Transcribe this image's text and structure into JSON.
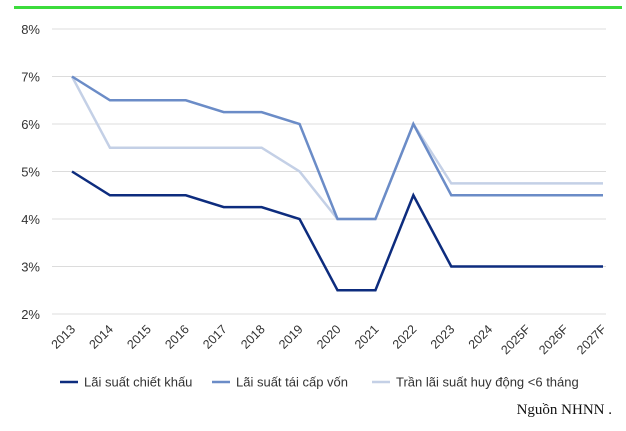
{
  "top_bar_color": "#3cdc3c",
  "source_note": "Nguồn NHNN .",
  "chart_data": {
    "type": "line",
    "categories": [
      "2013",
      "2014",
      "2015",
      "2016",
      "2017",
      "2018",
      "2019",
      "2020",
      "2021",
      "2022",
      "2023",
      "2024",
      "2025F",
      "2026F",
      "2027F"
    ],
    "y_ticks": [
      "2%",
      "3%",
      "4%",
      "5%",
      "6%",
      "7%",
      "8%"
    ],
    "ylim": [
      2,
      8
    ],
    "grid": "horizontal",
    "legend_position": "bottom",
    "series": [
      {
        "name": "Lãi suất chiết khấu",
        "color": "#0d2c7e",
        "values": [
          5.0,
          4.5,
          4.5,
          4.5,
          4.25,
          4.25,
          4.0,
          2.5,
          2.5,
          4.5,
          3.0,
          3.0,
          3.0,
          3.0,
          3.0
        ]
      },
      {
        "name": "Lãi suất tái cấp vốn",
        "color": "#6b8cc7",
        "values": [
          7.0,
          6.5,
          6.5,
          6.5,
          6.25,
          6.25,
          6.0,
          4.0,
          4.0,
          6.0,
          4.5,
          4.5,
          4.5,
          4.5,
          4.5
        ]
      },
      {
        "name": "Trần lãi suất huy động <6 tháng",
        "color": "#c4d0e6",
        "values": [
          7.0,
          5.5,
          5.5,
          5.5,
          5.5,
          5.5,
          5.0,
          4.0,
          4.0,
          6.0,
          4.75,
          4.75,
          4.75,
          4.75,
          4.75
        ]
      }
    ]
  }
}
